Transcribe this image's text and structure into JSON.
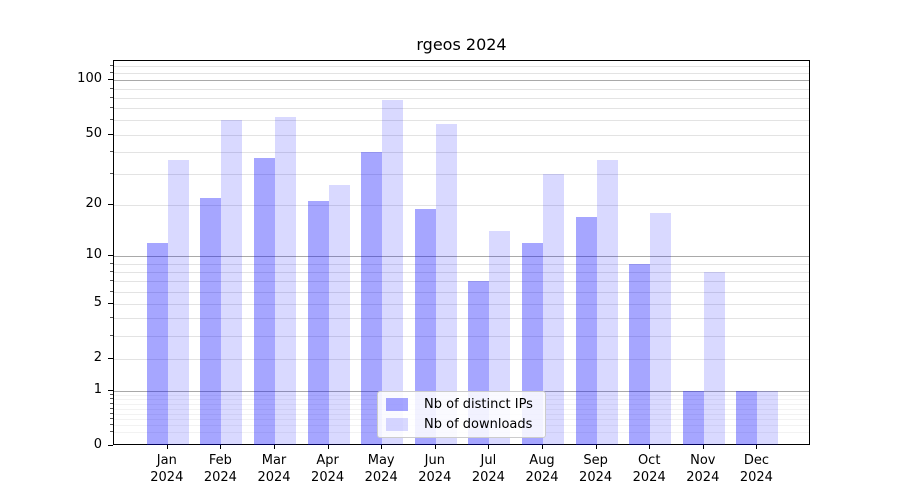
{
  "title": "rgeos 2024",
  "chart_data": {
    "type": "bar",
    "title": "rgeos 2024",
    "categories": [
      "Jan",
      "Feb",
      "Mar",
      "Apr",
      "May",
      "Jun",
      "Jul",
      "Aug",
      "Sep",
      "Oct",
      "Nov",
      "Dec"
    ],
    "category_year": "2024",
    "series": [
      {
        "name": "Nb of distinct IPs",
        "color": "rgba(0,0,255,0.35)",
        "values": [
          12,
          22,
          37,
          21,
          40,
          19,
          7,
          12,
          17,
          9,
          1,
          1
        ]
      },
      {
        "name": "Nb of downloads",
        "color": "rgba(0,0,255,0.15)",
        "values": [
          36,
          60,
          63,
          26,
          78,
          57,
          14,
          30,
          36,
          18,
          8,
          1
        ]
      }
    ],
    "xlabel": "",
    "ylabel": "",
    "yscale": "log10(value+1)",
    "yticks": [
      0,
      1,
      2,
      5,
      10,
      20,
      50,
      100
    ],
    "ylim": [
      0,
      128
    ],
    "grid": {
      "major_at": [
        1,
        10,
        100
      ],
      "minor_at": [
        2,
        3,
        4,
        5,
        6,
        7,
        8,
        9,
        20,
        30,
        40,
        50,
        60,
        70,
        80,
        90,
        110,
        120
      ],
      "sub_minor_at": [
        0.2,
        0.3,
        0.4,
        0.5,
        0.6,
        0.7,
        0.8,
        0.9
      ],
      "major_color": "#a9a9a9",
      "minor_color": "#e3e3e3",
      "sub_minor_color": "#f2f2f2"
    },
    "legend_position": "lower center"
  }
}
